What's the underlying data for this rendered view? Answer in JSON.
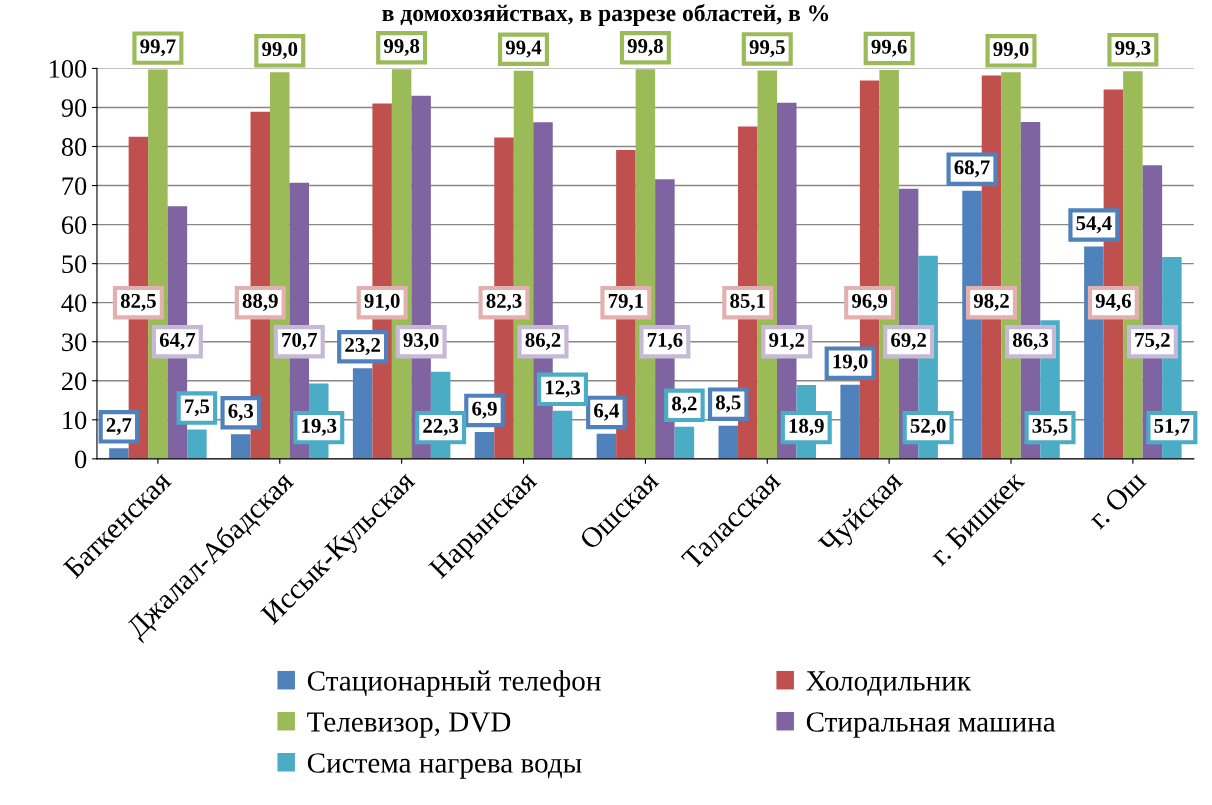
{
  "chart_data": {
    "type": "bar",
    "title": "в домохозяйствах, в разрезе областей, в %",
    "categories": [
      "Баткенская",
      "Джалал-Абадская",
      "Иссык-Кульская",
      "Нарынская",
      "Ошская",
      "Таласская",
      "Чуйская",
      "г. Бишкек",
      "г. Ош"
    ],
    "series": [
      {
        "name": "Стационарный телефон",
        "color": "#4f81bd",
        "values": [
          2.7,
          6.3,
          23.2,
          6.9,
          6.4,
          8.5,
          19.0,
          68.7,
          54.4
        ],
        "value_labels": [
          "2,7",
          "6,3",
          "23,2",
          "6,9",
          "6,4",
          "8,5",
          "19,0",
          "68,7",
          "54,4"
        ]
      },
      {
        "name": "Холодильник",
        "color": "#c0504d",
        "values": [
          82.5,
          88.9,
          91.0,
          82.3,
          79.1,
          85.1,
          96.9,
          98.2,
          94.6
        ],
        "value_labels": [
          "82,5",
          "88,9",
          "91,0",
          "82,3",
          "79,1",
          "85,1",
          "96,9",
          "98,2",
          "94,6"
        ]
      },
      {
        "name": "Телевизор, DVD",
        "color": "#9bbb59",
        "values": [
          99.7,
          99.0,
          99.8,
          99.4,
          99.8,
          99.5,
          99.6,
          99.0,
          99.3
        ],
        "value_labels": [
          "99,7",
          "99,0",
          "99,8",
          "99,4",
          "99,8",
          "99,5",
          "99,6",
          "99,0",
          "99,3"
        ]
      },
      {
        "name": "Стиральная машина",
        "color": "#8064a2",
        "values": [
          64.7,
          70.7,
          93.0,
          86.2,
          71.6,
          91.2,
          69.2,
          86.3,
          75.2
        ],
        "value_labels": [
          "64,7",
          "70,7",
          "93,0",
          "86,2",
          "71,6",
          "91,2",
          "69,2",
          "86,3",
          "75,2"
        ]
      },
      {
        "name": "Система нагрева воды",
        "color": "#4bacc6",
        "values": [
          7.5,
          19.3,
          22.3,
          12.3,
          8.2,
          18.9,
          52.0,
          35.5,
          51.7
        ],
        "value_labels": [
          "7,5",
          "19,3",
          "22,3",
          "12,3",
          "8,2",
          "18,9",
          "52,0",
          "35,5",
          "51,7"
        ]
      }
    ],
    "ylim": [
      0,
      100
    ],
    "yticks": [
      0,
      10,
      20,
      30,
      40,
      50,
      60,
      70,
      80,
      90,
      100
    ],
    "grid": "y",
    "legend": "bottom"
  }
}
